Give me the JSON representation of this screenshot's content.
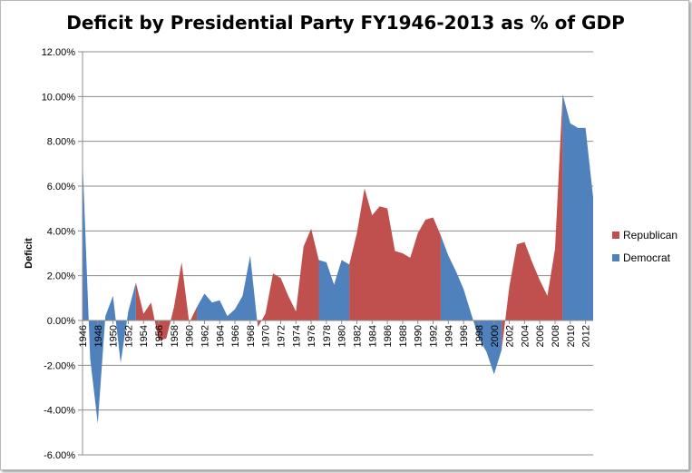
{
  "chart_data": {
    "type": "area",
    "title": "Deficit by Presidential Party FY1946-2013  as % of GDP",
    "xlabel": "",
    "ylabel": "Deficit",
    "ylim": [
      -0.06,
      0.12
    ],
    "y_ticks": [
      "-6.00%",
      "-4.00%",
      "-2.00%",
      "0.00%",
      "2.00%",
      "4.00%",
      "6.00%",
      "8.00%",
      "10.00%",
      "12.00%"
    ],
    "y_tick_values": [
      -0.06,
      -0.04,
      -0.02,
      0.0,
      0.02,
      0.04,
      0.06,
      0.08,
      0.1,
      0.12
    ],
    "x_tick_labels": [
      "1946",
      "1948",
      "1950",
      "1952",
      "1954",
      "1956",
      "1958",
      "1960",
      "1962",
      "1964",
      "1966",
      "1968",
      "1970",
      "1972",
      "1974",
      "1976",
      "1978",
      "1980",
      "1982",
      "1984",
      "1986",
      "1988",
      "1990",
      "1992",
      "1994",
      "1996",
      "1998",
      "2000",
      "2002",
      "2004",
      "2006",
      "2008",
      "2010",
      "2012"
    ],
    "grid": "horizontal",
    "legend_position": "right",
    "series": [
      {
        "name": "Republican",
        "color": "#C0504D",
        "x": [
          1953,
          1954,
          1955,
          1956,
          1957,
          1958,
          1959,
          1960,
          1961,
          1969,
          1970,
          1971,
          1972,
          1973,
          1974,
          1975,
          1976,
          1977,
          1981,
          1982,
          1983,
          1984,
          1985,
          1986,
          1987,
          1988,
          1989,
          1990,
          1991,
          1992,
          1993,
          2001,
          2002,
          2003,
          2004,
          2005,
          2006,
          2007,
          2008,
          2009
        ],
        "values": [
          0.017,
          0.003,
          0.008,
          -0.009,
          -0.008,
          0.006,
          0.026,
          -0.001,
          0.006,
          -0.003,
          0.003,
          0.021,
          0.019,
          0.011,
          0.004,
          0.033,
          0.041,
          0.027,
          0.025,
          0.039,
          0.059,
          0.047,
          0.051,
          0.05,
          0.031,
          0.03,
          0.028,
          0.039,
          0.045,
          0.046,
          0.038,
          -0.013,
          0.015,
          0.034,
          0.035,
          0.026,
          0.018,
          0.011,
          0.032,
          0.101
        ]
      },
      {
        "name": "Democrat",
        "color": "#4F81BD",
        "x": [
          1946,
          1947,
          1948,
          1949,
          1950,
          1951,
          1952,
          1953,
          1961,
          1962,
          1963,
          1964,
          1965,
          1966,
          1967,
          1968,
          1969,
          1977,
          1978,
          1979,
          1980,
          1981,
          1993,
          1994,
          1995,
          1996,
          1997,
          1998,
          1999,
          2000,
          2001,
          2009,
          2010,
          2011,
          2012,
          2013
        ],
        "values": [
          0.072,
          -0.017,
          -0.046,
          0.002,
          0.011,
          -0.019,
          0.004,
          0.017,
          0.006,
          0.012,
          0.008,
          0.009,
          0.002,
          0.005,
          0.011,
          0.029,
          -0.003,
          0.027,
          0.026,
          0.016,
          0.027,
          0.025,
          0.038,
          0.029,
          0.022,
          0.014,
          0.003,
          -0.008,
          -0.014,
          -0.024,
          -0.013,
          0.101,
          0.088,
          0.086,
          0.086,
          0.055
        ]
      }
    ]
  }
}
